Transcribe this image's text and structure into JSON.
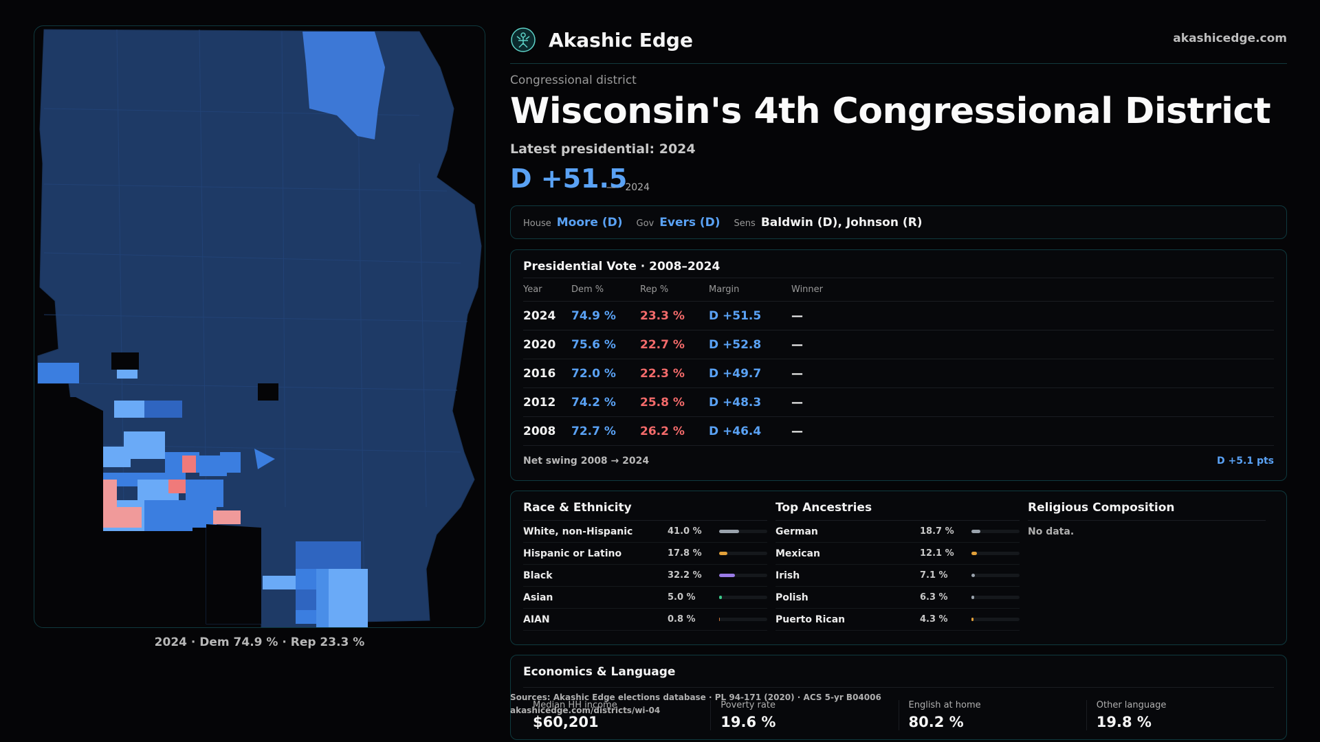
{
  "map": {
    "caption": "2024 · Dem 74.9 % · Rep 23.3 %",
    "colors": {
      "base": "#1e3a66",
      "light": "#6aaaf7",
      "mid": "#3b7ee0",
      "red": "#f07a7a"
    }
  },
  "header": {
    "brand": "Akashic Edge",
    "site": "akashicedge.com",
    "logo_icon": "akashic-logo-icon"
  },
  "district": {
    "eyebrow": "Congressional district",
    "title": "Wisconsin's 4th Congressional District",
    "latest_label": "Latest presidential: 2024",
    "margin": "D +51.5",
    "margin_sub": "— · 2024"
  },
  "reps": {
    "house_label": "House",
    "house_value": "Moore (D)",
    "gov_label": "Gov",
    "gov_value": "Evers (D)",
    "sens_label": "Sens",
    "sens_value": "Baldwin (D), Johnson (R)"
  },
  "presidential": {
    "title": "Presidential Vote · 2008–2024",
    "headers": {
      "year": "Year",
      "dem": "Dem %",
      "rep": "Rep %",
      "margin": "Margin",
      "winner": "Winner"
    },
    "rows": [
      {
        "year": "2024",
        "dem": "74.9 %",
        "rep": "23.3 %",
        "margin": "D +51.5",
        "winner": "—"
      },
      {
        "year": "2020",
        "dem": "75.6 %",
        "rep": "22.7 %",
        "margin": "D +52.8",
        "winner": "—"
      },
      {
        "year": "2016",
        "dem": "72.0 %",
        "rep": "22.3 %",
        "margin": "D +49.7",
        "winner": "—"
      },
      {
        "year": "2012",
        "dem": "74.2 %",
        "rep": "25.8 %",
        "margin": "D +48.3",
        "winner": "—"
      },
      {
        "year": "2008",
        "dem": "72.7 %",
        "rep": "26.2 %",
        "margin": "D +46.4",
        "winner": "—"
      }
    ],
    "swing_label": "Net swing 2008 → 2024",
    "swing_value": "D +5.1 pts"
  },
  "race": {
    "title": "Race & Ethnicity",
    "items": [
      {
        "name": "White, non-Hispanic",
        "pct": "41.0 %",
        "value": 41.0,
        "color": "#9aa3ad"
      },
      {
        "name": "Hispanic or Latino",
        "pct": "17.8 %",
        "value": 17.8,
        "color": "#e3a13a"
      },
      {
        "name": "Black",
        "pct": "32.2 %",
        "value": 32.2,
        "color": "#9a7be6"
      },
      {
        "name": "Asian",
        "pct": "5.0 %",
        "value": 5.0,
        "color": "#3cc98a"
      },
      {
        "name": "AIAN",
        "pct": "0.8 %",
        "value": 0.8,
        "color": "#d07a3a"
      }
    ]
  },
  "ancestry": {
    "title": "Top Ancestries",
    "items": [
      {
        "name": "German",
        "pct": "18.7 %",
        "value": 18.7,
        "color": "#9aa3ad"
      },
      {
        "name": "Mexican",
        "pct": "12.1 %",
        "value": 12.1,
        "color": "#e3a13a"
      },
      {
        "name": "Irish",
        "pct": "7.1 %",
        "value": 7.1,
        "color": "#9aa3ad"
      },
      {
        "name": "Polish",
        "pct": "6.3 %",
        "value": 6.3,
        "color": "#9aa3ad"
      },
      {
        "name": "Puerto Rican",
        "pct": "4.3 %",
        "value": 4.3,
        "color": "#e3a13a"
      }
    ]
  },
  "religion": {
    "title": "Religious Composition",
    "empty": "No data."
  },
  "economics": {
    "title": "Economics & Language",
    "cells": [
      {
        "label": "Median HH income",
        "value": "$60,201"
      },
      {
        "label": "Poverty rate",
        "value": "19.6 %"
      },
      {
        "label": "English at home",
        "value": "80.2 %"
      },
      {
        "label": "Other language",
        "value": "19.8 %"
      }
    ]
  },
  "sources": {
    "line1": "Sources: Akashic Edge elections database · PL 94-171 (2020) · ACS 5-yr B04006",
    "line2": "akashicedge.com/districts/wi-04"
  }
}
